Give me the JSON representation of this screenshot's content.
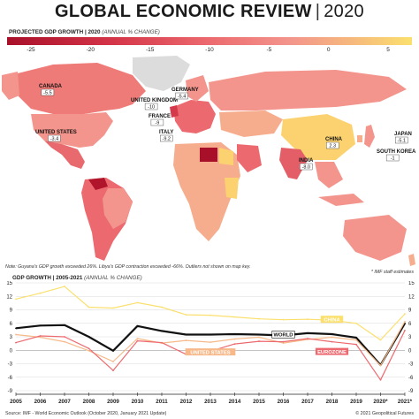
{
  "header": {
    "title_main": "GLOBAL ECONOMIC REVIEW",
    "title_sep": "|",
    "title_year": "2020"
  },
  "legend": {
    "title": "PROJECTED GDP GROWTH | 2020",
    "subtitle": "(ANNUAL % CHANGE)",
    "ticks": [
      "-25",
      "-20",
      "-15",
      "-10",
      "-5",
      "0",
      "5"
    ],
    "tick_values": [
      -25,
      -20,
      -15,
      -10,
      -5,
      0,
      5
    ],
    "range": [
      -27,
      7
    ],
    "colors": {
      "low": "#a8102a",
      "mid": "#ec6a6f",
      "zero": "#f3958c",
      "high": "#fbe06e"
    }
  },
  "map": {
    "countries": [
      {
        "name": "CANADA",
        "value": "-5.5"
      },
      {
        "name": "UNITED STATES",
        "value": "-3.4"
      },
      {
        "name": "UNITED KINGDOM",
        "value": "-10"
      },
      {
        "name": "GERMANY",
        "value": "-5.4"
      },
      {
        "name": "FRANCE",
        "value": "-9"
      },
      {
        "name": "ITALY",
        "value": "-9.2"
      },
      {
        "name": "CHINA",
        "value": "2.3"
      },
      {
        "name": "INDIA",
        "value": "-8.0"
      },
      {
        "name": "JAPAN",
        "value": "-5.1"
      },
      {
        "name": "SOUTH KOREA",
        "value": "-1"
      }
    ],
    "colors": {
      "ocean": "#ffffff",
      "land_default": "#f3958c",
      "land_light": "#f6ad8d",
      "land_dark": "#e45e67",
      "land_yellow": "#fbd26f",
      "nodata": "#dcdcdc",
      "libya": "#a8102a",
      "venezuela": "#b1152c"
    }
  },
  "notes": {
    "left": "Note: Guyana's GDP growth exceeded 26%. Libya's GDP contraction exceeded -66%. Outliers not shown on map key.",
    "right": "* IMF staff estimates"
  },
  "chart_data": {
    "type": "line",
    "title": "GDP GROWTH | 2005-2021",
    "subtitle": "(ANNUAL % CHANGE)",
    "categories": [
      "2005",
      "2006",
      "2007",
      "2008",
      "2009",
      "2010",
      "2011",
      "2012",
      "2013",
      "2014",
      "2015",
      "2016",
      "2017",
      "2018",
      "2019",
      "2020*",
      "2021*"
    ],
    "ylim": [
      -9,
      15
    ],
    "yticks": [
      -9,
      -6,
      -3,
      0,
      3,
      6,
      9,
      12,
      15
    ],
    "series": [
      {
        "name": "CHINA",
        "color": "#fbe06e",
        "width": 1.2,
        "values": [
          11.4,
          12.7,
          14.2,
          9.6,
          9.4,
          10.6,
          9.6,
          7.9,
          7.8,
          7.4,
          7.0,
          6.8,
          6.9,
          6.7,
          6.0,
          2.3,
          8.1
        ]
      },
      {
        "name": "WORLD",
        "color": "#111111",
        "width": 2.2,
        "values": [
          4.9,
          5.5,
          5.6,
          3.0,
          -0.1,
          5.4,
          4.3,
          3.5,
          3.5,
          3.6,
          3.5,
          3.3,
          3.8,
          3.6,
          2.8,
          -3.3,
          6.0
        ]
      },
      {
        "name": "UNITED STATES",
        "color": "#f7b98a",
        "width": 1.2,
        "values": [
          3.5,
          2.9,
          1.9,
          -0.1,
          -2.5,
          2.6,
          1.6,
          2.2,
          1.8,
          2.5,
          2.9,
          1.6,
          2.4,
          2.9,
          2.3,
          -3.4,
          6.4
        ]
      },
      {
        "name": "EUROZONE",
        "color": "#ec6a6f",
        "width": 1.2,
        "values": [
          1.7,
          3.2,
          3.0,
          0.4,
          -4.5,
          2.1,
          1.7,
          -0.9,
          -0.2,
          1.4,
          2.0,
          1.9,
          2.6,
          1.9,
          1.3,
          -6.6,
          4.4
        ]
      }
    ],
    "labels": [
      {
        "series": "CHINA",
        "text": "CHINA",
        "at": "2018"
      },
      {
        "series": "WORLD",
        "text": "WORLD",
        "at": "2016"
      },
      {
        "series": "UNITED STATES",
        "text": "UNITED STATES",
        "at": "2013"
      },
      {
        "series": "EUROZONE",
        "text": "EUROZONE",
        "at": "2018"
      }
    ]
  },
  "footer": {
    "source": "Source: IMF - World Economic Outlook (October 2020, January 2021 Update)",
    "copyright": "© 2021 Geopolitical Futures"
  }
}
